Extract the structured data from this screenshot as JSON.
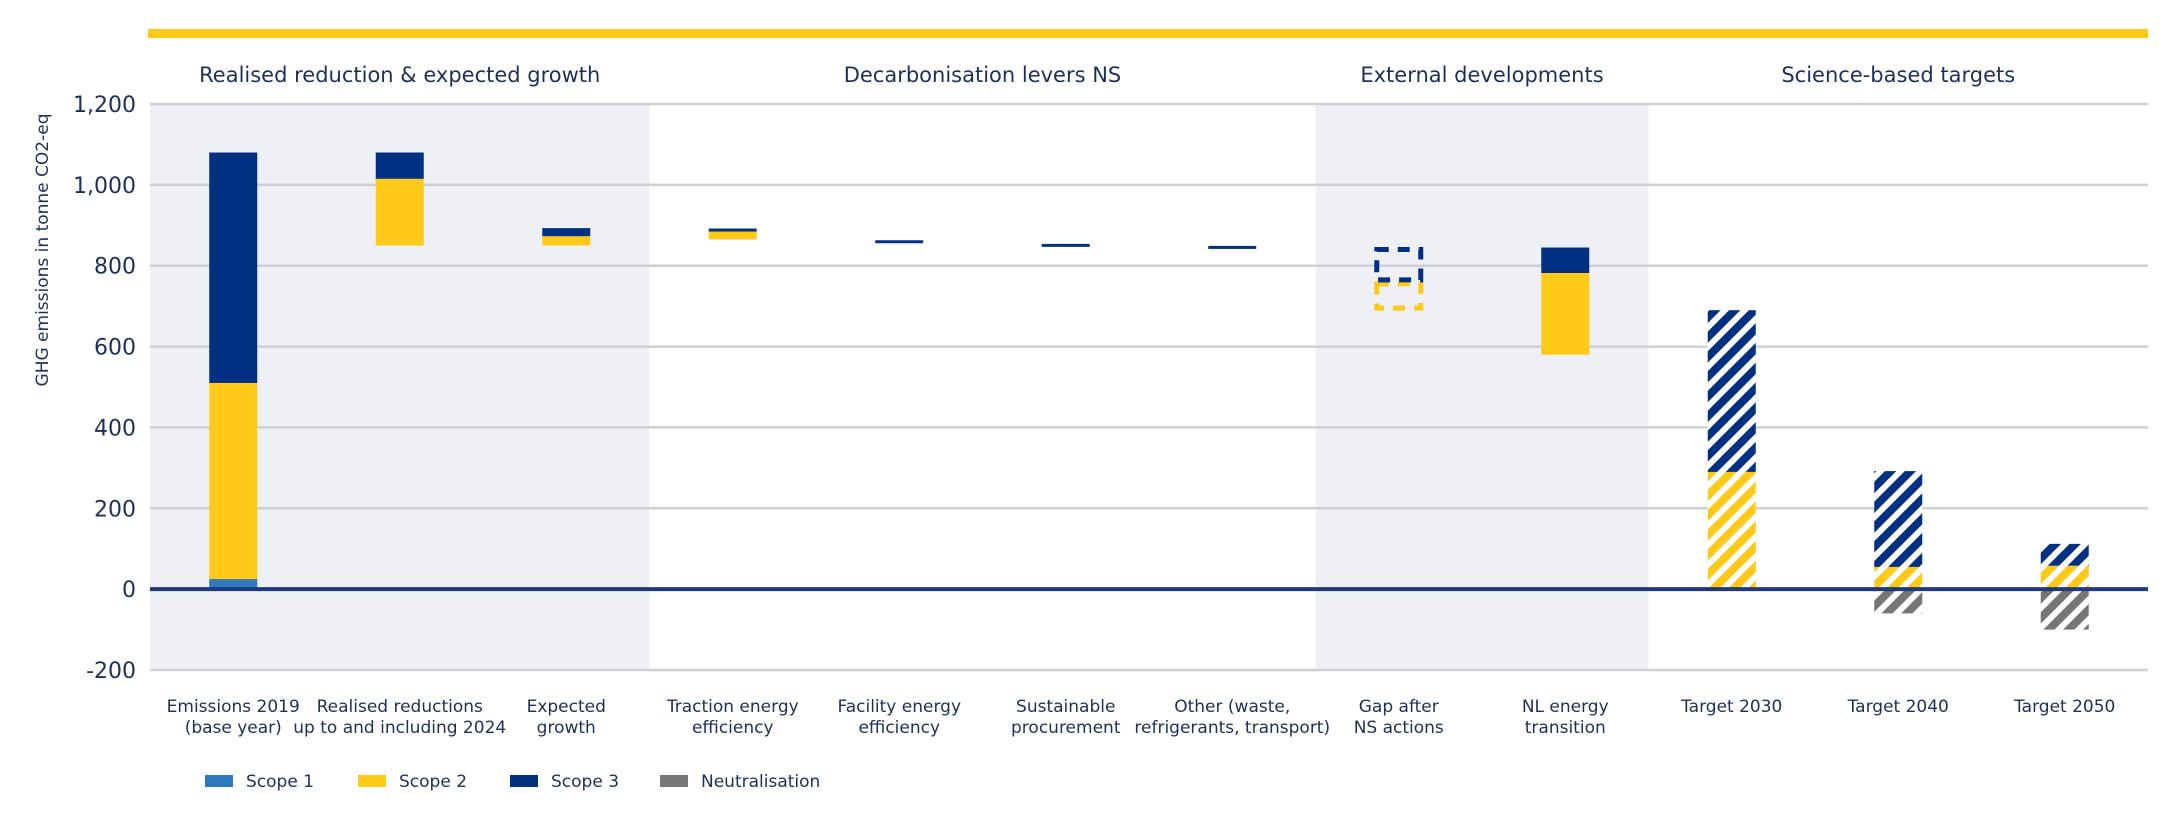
{
  "chart_data": {
    "type": "bar",
    "subtype": "waterfall",
    "ylabel": "GHG emissions in tonne CO2-eq",
    "ylim": [
      -200,
      1200
    ],
    "yticks": [
      -200,
      0,
      200,
      400,
      600,
      800,
      1000,
      1200
    ],
    "ytick_labels": [
      "-200",
      "0",
      "200",
      "400",
      "600",
      "800",
      "1,000",
      "1,200"
    ],
    "grid": true,
    "legend_position": "bottom-left",
    "colors": {
      "scope1": "#2f79c0",
      "scope2": "#ffc917",
      "scope3": "#003082",
      "neutralisation": "#767676",
      "accent_bar": "#ffc917",
      "shaded_group": "#eff0f5",
      "axis": "#1f3a7a"
    },
    "groups": [
      {
        "label": "Realised reduction & expected growth",
        "categories": [
          0,
          2
        ],
        "shaded": true
      },
      {
        "label": "Decarbonisation levers NS",
        "categories": [
          3,
          6
        ],
        "shaded": false
      },
      {
        "label": "External developments",
        "categories": [
          7,
          8
        ],
        "shaded": true
      },
      {
        "label": "Science-based targets",
        "categories": [
          9,
          11
        ],
        "shaded": false
      }
    ],
    "categories": [
      [
        "Emissions 2019",
        "(base year)"
      ],
      [
        "Realised reductions",
        "up to and including 2024"
      ],
      [
        "Expected",
        "growth"
      ],
      [
        "Traction energy",
        "efficiency"
      ],
      [
        "Facility energy",
        "efficiency"
      ],
      [
        "Sustainable",
        "procurement"
      ],
      [
        "Other (waste,",
        "refrigerants, transport)"
      ],
      [
        "Gap after",
        "NS actions"
      ],
      [
        "NL energy",
        "transition"
      ],
      [
        "Target 2030"
      ],
      [
        "Target 2040"
      ],
      [
        "Target 2050"
      ]
    ],
    "bars": [
      [
        {
          "series": "scope1",
          "from": 0,
          "to": 25
        },
        {
          "series": "scope2",
          "from": 25,
          "to": 510
        },
        {
          "series": "scope3",
          "from": 510,
          "to": 1080
        }
      ],
      [
        {
          "series": "scope2",
          "from": 850,
          "to": 1015
        },
        {
          "series": "scope3",
          "from": 1015,
          "to": 1080
        }
      ],
      [
        {
          "series": "scope2",
          "from": 850,
          "to": 873
        },
        {
          "series": "scope3",
          "from": 873,
          "to": 893
        }
      ],
      [
        {
          "series": "scope2",
          "from": 865,
          "to": 885
        },
        {
          "series": "scope3",
          "from": 885,
          "to": 892
        }
      ],
      [
        {
          "series": "scope3",
          "from": 857,
          "to": 863
        }
      ],
      [
        {
          "series": "scope3",
          "from": 848,
          "to": 854
        }
      ],
      [
        {
          "series": "scope3",
          "from": 843,
          "to": 849
        }
      ],
      [
        {
          "series": "scope2",
          "from": 690,
          "to": 760,
          "style": "dashed"
        },
        {
          "series": "scope3",
          "from": 760,
          "to": 845,
          "style": "dashed"
        }
      ],
      [
        {
          "series": "scope2",
          "from": 580,
          "to": 782
        },
        {
          "series": "scope3",
          "from": 782,
          "to": 845
        }
      ],
      [
        {
          "series": "scope2",
          "from": 0,
          "to": 290,
          "style": "hatched"
        },
        {
          "series": "scope3",
          "from": 290,
          "to": 690,
          "style": "hatched"
        }
      ],
      [
        {
          "series": "neutralisation",
          "from": -60,
          "to": 0,
          "style": "hatched"
        },
        {
          "series": "scope2",
          "from": 0,
          "to": 55,
          "style": "hatched"
        },
        {
          "series": "scope3",
          "from": 55,
          "to": 292,
          "style": "hatched"
        }
      ],
      [
        {
          "series": "neutralisation",
          "from": -100,
          "to": 0,
          "style": "hatched"
        },
        {
          "series": "scope2",
          "from": 0,
          "to": 58,
          "style": "hatched"
        },
        {
          "series": "scope3",
          "from": 58,
          "to": 112,
          "style": "hatched"
        }
      ]
    ],
    "legend": [
      {
        "key": "scope1",
        "label": "Scope 1"
      },
      {
        "key": "scope2",
        "label": "Scope 2"
      },
      {
        "key": "scope3",
        "label": "Scope 3"
      },
      {
        "key": "neutralisation",
        "label": "Neutralisation"
      }
    ]
  }
}
